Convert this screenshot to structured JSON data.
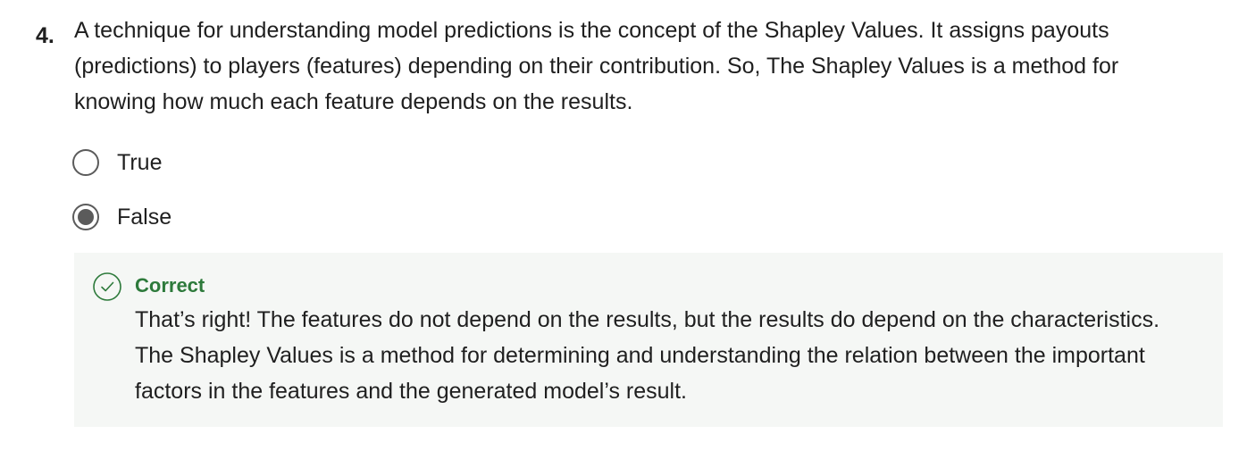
{
  "question": {
    "number": "4.",
    "text": "A technique for understanding model predictions is the concept of the Shapley Values. It assigns payouts (predictions) to players (features) depending on their contribution. So, The Shapley Values is a method for knowing how much each feature depends on the results."
  },
  "options": [
    {
      "label": "True",
      "selected": false
    },
    {
      "label": "False",
      "selected": true
    }
  ],
  "feedback": {
    "icon": "check-circle-icon",
    "status": "Correct",
    "status_color": "#2d7a3b",
    "text": "That’s right! The features do not depend on the results, but the results do depend on the characteristics. The Shapley Values is a method for determining and understanding the relation between the important factors in the features and the generated model’s result."
  }
}
